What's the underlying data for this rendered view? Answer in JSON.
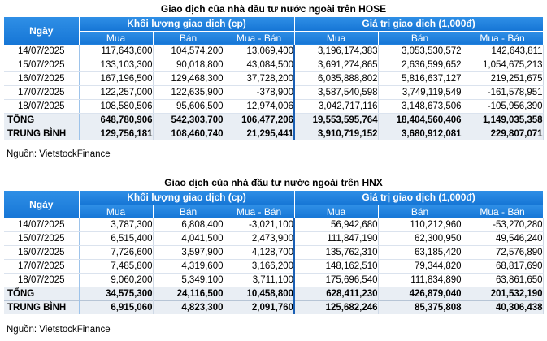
{
  "hose": {
    "title": "Giao dịch của nhà đầu tư nước ngoài trên HOSE",
    "headers": {
      "day": "Ngày",
      "volume_group": "Khối lượng giao dịch (cp)",
      "value_group": "Giá trị giao dịch (1,000đ)",
      "buy": "Mua",
      "sell": "Bán",
      "net": "Mua - Bán"
    },
    "rows": [
      {
        "date": "14/07/2025",
        "vol_buy": "117,643,600",
        "vol_sell": "104,574,200",
        "vol_net": "13,069,400",
        "val_buy": "3,196,174,383",
        "val_sell": "3,053,530,572",
        "val_net": "142,643,811"
      },
      {
        "date": "15/07/2025",
        "vol_buy": "133,103,300",
        "vol_sell": "90,018,800",
        "vol_net": "43,084,500",
        "val_buy": "3,691,274,865",
        "val_sell": "2,636,599,652",
        "val_net": "1,054,675,213"
      },
      {
        "date": "16/07/2025",
        "vol_buy": "167,196,500",
        "vol_sell": "129,468,300",
        "vol_net": "37,728,200",
        "val_buy": "6,035,888,802",
        "val_sell": "5,816,637,127",
        "val_net": "219,251,675"
      },
      {
        "date": "17/07/2025",
        "vol_buy": "122,257,000",
        "vol_sell": "122,635,900",
        "vol_net": "-378,900",
        "val_buy": "3,587,540,598",
        "val_sell": "3,749,119,549",
        "val_net": "-161,578,951"
      },
      {
        "date": "18/07/2025",
        "vol_buy": "108,580,506",
        "vol_sell": "95,606,500",
        "vol_net": "12,974,006",
        "val_buy": "3,042,717,116",
        "val_sell": "3,148,673,506",
        "val_net": "-105,956,390"
      }
    ],
    "total": {
      "label": "TỔNG",
      "vol_buy": "648,780,906",
      "vol_sell": "542,303,700",
      "vol_net": "106,477,206",
      "val_buy": "19,553,595,764",
      "val_sell": "18,404,560,406",
      "val_net": "1,149,035,358"
    },
    "average": {
      "label": "TRUNG BÌNH",
      "vol_buy": "129,756,181",
      "vol_sell": "108,460,740",
      "vol_net": "21,295,441",
      "val_buy": "3,910,719,152",
      "val_sell": "3,680,912,081",
      "val_net": "229,807,071"
    },
    "source": "Nguồn: VietstockFinance"
  },
  "hnx": {
    "title": "Giao dịch của nhà đầu tư nước ngoài trên HNX",
    "headers": {
      "day": "Ngày",
      "volume_group": "Khối lượng giao dịch (cp)",
      "value_group": "Giá trị giao dịch (1,000đ)",
      "buy": "Mua",
      "sell": "Bán",
      "net": "Mua - Bán"
    },
    "rows": [
      {
        "date": "14/07/2025",
        "vol_buy": "3,787,300",
        "vol_sell": "6,808,400",
        "vol_net": "-3,021,100",
        "val_buy": "56,942,680",
        "val_sell": "110,212,960",
        "val_net": "-53,270,280"
      },
      {
        "date": "15/07/2025",
        "vol_buy": "6,515,400",
        "vol_sell": "4,041,500",
        "vol_net": "2,473,900",
        "val_buy": "111,847,190",
        "val_sell": "62,300,950",
        "val_net": "49,546,240"
      },
      {
        "date": "16/07/2025",
        "vol_buy": "7,726,600",
        "vol_sell": "3,597,900",
        "vol_net": "4,128,700",
        "val_buy": "135,762,310",
        "val_sell": "63,185,420",
        "val_net": "72,576,890"
      },
      {
        "date": "17/07/2025",
        "vol_buy": "7,485,800",
        "vol_sell": "4,319,600",
        "vol_net": "3,166,200",
        "val_buy": "148,162,510",
        "val_sell": "79,344,820",
        "val_net": "68,817,690"
      },
      {
        "date": "18/07/2025",
        "vol_buy": "9,060,200",
        "vol_sell": "5,349,100",
        "vol_net": "3,711,100",
        "val_buy": "175,696,540",
        "val_sell": "111,834,890",
        "val_net": "63,861,650"
      }
    ],
    "total": {
      "label": "TỔNG",
      "vol_buy": "34,575,300",
      "vol_sell": "24,116,500",
      "vol_net": "10,458,800",
      "val_buy": "628,411,230",
      "val_sell": "426,879,040",
      "val_net": "201,532,190"
    },
    "average": {
      "label": "TRUNG BÌNH",
      "vol_buy": "6,915,060",
      "vol_sell": "4,823,300",
      "vol_net": "2,091,760",
      "val_buy": "125,682,246",
      "val_sell": "85,375,808",
      "val_net": "40,306,438"
    },
    "source": "Nguồn: VietstockFinance"
  },
  "colors": {
    "header_blue": "#1676d6",
    "positive": "#1a9a1a",
    "negative": "#e02020",
    "summary_bg": "#e9eef4"
  }
}
